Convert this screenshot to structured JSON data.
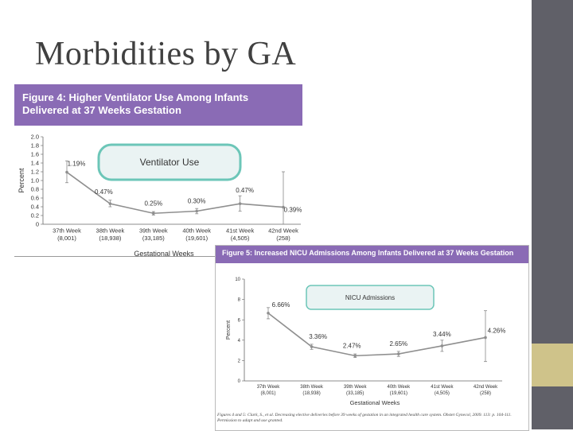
{
  "slide": {
    "title": "Morbidities by GA"
  },
  "colors": {
    "header": "#8a6bb5",
    "line": "#8f8f8f",
    "callout_fill": "#eaf3f3",
    "callout_stroke": "#6cc6b8",
    "right_bar": "#606068",
    "accent": "#cfc38a"
  },
  "chart_data": [
    {
      "type": "line",
      "title_lines": [
        "Figure 4: Higher Ventilator Use Among Infants",
        "Delivered at 37 Weeks Gestation"
      ],
      "callout": "Ventilator Use",
      "ylabel": "Percent",
      "xlabel": "Gestational Weeks",
      "ylim": [
        0,
        2.0
      ],
      "yticks": [
        "2.0",
        "1.8",
        "1.6",
        "1.4",
        "1.2",
        "1.0",
        "0.8",
        "0.6",
        "0.4",
        "0.2",
        "0"
      ],
      "categories": [
        "37th Week",
        "38th Week",
        "39th Week",
        "40th Week",
        "41st Week",
        "42nd Week"
      ],
      "counts": [
        "(8,001)",
        "(18,938)",
        "(33,185)",
        "(19,601)",
        "(4,505)",
        "(258)"
      ],
      "values": [
        1.19,
        0.47,
        0.25,
        0.3,
        0.47,
        0.39
      ],
      "labels": [
        "1.19%",
        "0.47%",
        "0.25%",
        "0.30%",
        "0.47%",
        "0.39%"
      ],
      "errors": [
        [
          0.95,
          1.45
        ],
        [
          0.4,
          0.55
        ],
        [
          0.21,
          0.29
        ],
        [
          0.24,
          0.36
        ],
        [
          0.3,
          0.65
        ],
        [
          0.0,
          1.2
        ]
      ]
    },
    {
      "type": "line",
      "title": "Figure 5: Increased NICU Admissions Among Infants Delivered at 37 Weeks Gestation",
      "callout": "NICU Admissions",
      "ylabel": "Percent",
      "xlabel": "Gestational Weeks",
      "ylim": [
        0,
        10
      ],
      "yticks": [
        "10",
        "8",
        "6",
        "4",
        "2",
        "0"
      ],
      "categories": [
        "37th Week",
        "38th Week",
        "39th Week",
        "40th Week",
        "41st Week",
        "42nd Week"
      ],
      "counts": [
        "(8,001)",
        "(18,938)",
        "(33,185)",
        "(19,601)",
        "(4,505)",
        "(258)"
      ],
      "values": [
        6.66,
        3.36,
        2.47,
        2.65,
        3.44,
        4.26
      ],
      "labels": [
        "6.66%",
        "3.36%",
        "2.47%",
        "2.65%",
        "3.44%",
        "4.26%"
      ],
      "errors": [
        [
          6.1,
          7.2
        ],
        [
          3.1,
          3.6
        ],
        [
          2.3,
          2.65
        ],
        [
          2.4,
          2.9
        ],
        [
          2.9,
          4.0
        ],
        [
          1.9,
          6.9
        ]
      ],
      "footnote": "Figures 4 and 5: Clark, S., et al. Decreasing elective deliveries before 39 weeks of gestation in an integrated health care system. Obstet Gynecol, 2009. 113: p. 104-111. Permission to adapt and use granted."
    }
  ]
}
